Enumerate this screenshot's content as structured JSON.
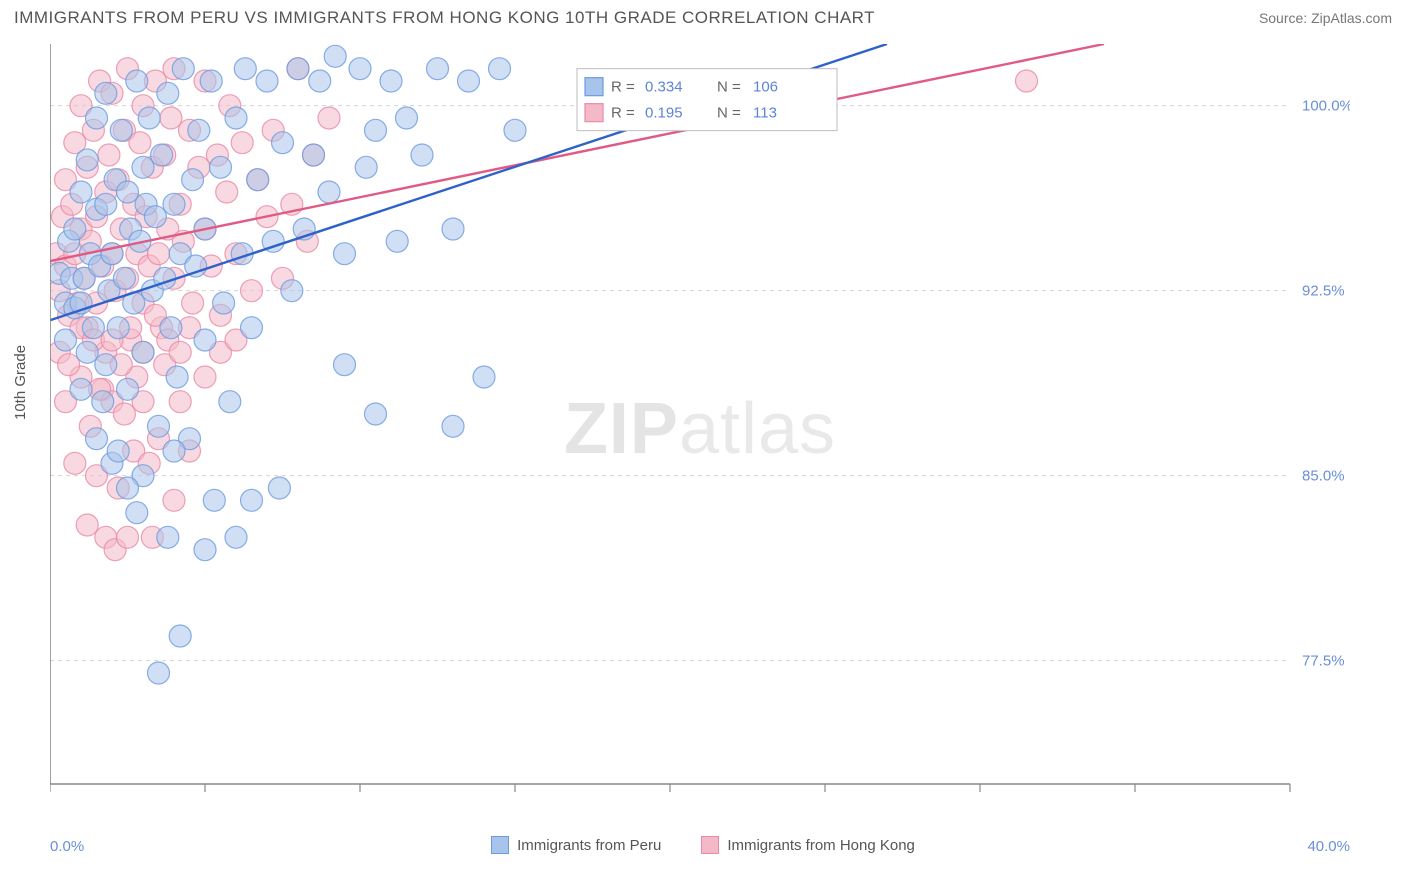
{
  "header": {
    "title": "IMMIGRANTS FROM PERU VS IMMIGRANTS FROM HONG KONG 10TH GRADE CORRELATION CHART",
    "source": "Source: ZipAtlas.com"
  },
  "axes": {
    "ylabel": "10th Grade",
    "x_min_label": "0.0%",
    "x_max_label": "40.0%",
    "xlim": [
      0,
      40
    ],
    "ylim": [
      72.5,
      102.5
    ],
    "y_ticks": [
      77.5,
      85.0,
      92.5,
      100.0
    ],
    "y_tick_labels": [
      "77.5%",
      "85.0%",
      "92.5%",
      "100.0%"
    ],
    "x_ticks": [
      0,
      5,
      10,
      15,
      20,
      25,
      30,
      35,
      40
    ],
    "grid_color": "#d4d4d4",
    "axis_color": "#888888",
    "tick_label_color": "#6a8fd8",
    "tick_label_fontsize": 15
  },
  "legend_box": {
    "border_color": "#bdbdbd",
    "bg": "#ffffff",
    "rows": [
      {
        "r_label": "R =",
        "r_value": "0.334",
        "n_label": "N =",
        "n_value": "106",
        "swatch_fill": "#a9c4ea",
        "swatch_stroke": "#6d9be0"
      },
      {
        "r_label": "R =",
        "r_value": "0.195",
        "n_label": "N =",
        "n_value": "113",
        "swatch_fill": "#f4b9c9",
        "swatch_stroke": "#e88aa6"
      }
    ],
    "value_color": "#5d84d6",
    "label_color": "#666666"
  },
  "bottom_legend": {
    "items": [
      {
        "label": "Immigrants from Peru",
        "fill": "#a9c4ea",
        "stroke": "#6d9be0"
      },
      {
        "label": "Immigrants from Hong Kong",
        "fill": "#f4b9c9",
        "stroke": "#e88aa6"
      }
    ]
  },
  "watermark": {
    "bold": "ZIP",
    "light": "atlas"
  },
  "series": {
    "peru": {
      "fill": "#a9c4ea",
      "stroke": "#6d9be0",
      "opacity": 0.55,
      "marker_r": 11,
      "line_stroke": "#2f62c9",
      "line_width": 2.4,
      "trend": {
        "x1": 0,
        "y1": 91.3,
        "x2": 27,
        "y2": 102.5
      },
      "points": [
        [
          0.3,
          93.2
        ],
        [
          0.5,
          92.0
        ],
        [
          0.6,
          94.5
        ],
        [
          0.7,
          93.0
        ],
        [
          0.8,
          91.8
        ],
        [
          0.8,
          95.0
        ],
        [
          1.0,
          92.0
        ],
        [
          1.0,
          96.5
        ],
        [
          1.1,
          93.0
        ],
        [
          1.2,
          90.0
        ],
        [
          1.2,
          97.8
        ],
        [
          1.3,
          94.0
        ],
        [
          1.4,
          91.0
        ],
        [
          1.5,
          95.8
        ],
        [
          1.5,
          99.5
        ],
        [
          1.6,
          93.5
        ],
        [
          1.7,
          88.0
        ],
        [
          1.8,
          96.0
        ],
        [
          1.8,
          100.5
        ],
        [
          1.9,
          92.5
        ],
        [
          2.0,
          94.0
        ],
        [
          2.0,
          85.5
        ],
        [
          2.1,
          97.0
        ],
        [
          2.2,
          91.0
        ],
        [
          2.3,
          99.0
        ],
        [
          2.4,
          93.0
        ],
        [
          2.5,
          96.5
        ],
        [
          2.5,
          88.5
        ],
        [
          2.6,
          95.0
        ],
        [
          2.7,
          92.0
        ],
        [
          2.8,
          101.0
        ],
        [
          2.8,
          83.5
        ],
        [
          2.9,
          94.5
        ],
        [
          3.0,
          97.5
        ],
        [
          3.0,
          90.0
        ],
        [
          3.1,
          96.0
        ],
        [
          3.2,
          99.5
        ],
        [
          3.3,
          92.5
        ],
        [
          3.4,
          95.5
        ],
        [
          3.5,
          87.0
        ],
        [
          3.6,
          98.0
        ],
        [
          3.7,
          93.0
        ],
        [
          3.8,
          100.5
        ],
        [
          3.9,
          91.0
        ],
        [
          4.0,
          96.0
        ],
        [
          4.1,
          89.0
        ],
        [
          4.2,
          94.0
        ],
        [
          4.3,
          101.5
        ],
        [
          4.5,
          86.5
        ],
        [
          4.6,
          97.0
        ],
        [
          4.7,
          93.5
        ],
        [
          4.8,
          99.0
        ],
        [
          5.0,
          95.0
        ],
        [
          5.0,
          90.5
        ],
        [
          5.2,
          101.0
        ],
        [
          5.3,
          84.0
        ],
        [
          5.5,
          97.5
        ],
        [
          5.6,
          92.0
        ],
        [
          5.8,
          88.0
        ],
        [
          6.0,
          99.5
        ],
        [
          6.2,
          94.0
        ],
        [
          6.3,
          101.5
        ],
        [
          6.5,
          91.0
        ],
        [
          6.7,
          97.0
        ],
        [
          7.0,
          101.0
        ],
        [
          7.2,
          94.5
        ],
        [
          7.4,
          84.5
        ],
        [
          7.5,
          98.5
        ],
        [
          7.8,
          92.5
        ],
        [
          8.0,
          101.5
        ],
        [
          8.2,
          95.0
        ],
        [
          8.5,
          98.0
        ],
        [
          8.7,
          101.0
        ],
        [
          9.0,
          96.5
        ],
        [
          9.2,
          102.0
        ],
        [
          9.5,
          94.0
        ],
        [
          9.5,
          89.5
        ],
        [
          10.0,
          101.5
        ],
        [
          10.2,
          97.5
        ],
        [
          10.5,
          99.0
        ],
        [
          10.5,
          87.5
        ],
        [
          11.0,
          101.0
        ],
        [
          11.2,
          94.5
        ],
        [
          11.5,
          99.5
        ],
        [
          12.0,
          98.0
        ],
        [
          12.5,
          101.5
        ],
        [
          13.0,
          95.0
        ],
        [
          13.0,
          87.0
        ],
        [
          13.5,
          101.0
        ],
        [
          14.0,
          89.0
        ],
        [
          14.5,
          101.5
        ],
        [
          15.0,
          99.0
        ],
        [
          3.5,
          77.0
        ],
        [
          4.2,
          78.5
        ],
        [
          5.0,
          82.0
        ],
        [
          3.0,
          85.0
        ],
        [
          3.8,
          82.5
        ],
        [
          6.0,
          82.5
        ],
        [
          6.5,
          84.0
        ],
        [
          4.0,
          86.0
        ],
        [
          2.2,
          86.0
        ],
        [
          2.5,
          84.5
        ],
        [
          1.5,
          86.5
        ],
        [
          1.0,
          88.5
        ],
        [
          1.8,
          89.5
        ],
        [
          0.5,
          90.5
        ]
      ]
    },
    "hk": {
      "fill": "#f4b9c9",
      "stroke": "#e88aa6",
      "opacity": 0.55,
      "marker_r": 11,
      "line_stroke": "#e15a84",
      "line_width": 2.4,
      "trend": {
        "x1": 0,
        "y1": 93.7,
        "x2": 34,
        "y2": 102.5
      },
      "points": [
        [
          0.2,
          94.0
        ],
        [
          0.3,
          92.5
        ],
        [
          0.4,
          95.5
        ],
        [
          0.5,
          93.5
        ],
        [
          0.5,
          97.0
        ],
        [
          0.6,
          91.5
        ],
        [
          0.7,
          96.0
        ],
        [
          0.8,
          94.0
        ],
        [
          0.8,
          98.5
        ],
        [
          0.9,
          92.0
        ],
        [
          1.0,
          95.0
        ],
        [
          1.0,
          100.0
        ],
        [
          1.1,
          93.0
        ],
        [
          1.2,
          97.5
        ],
        [
          1.2,
          91.0
        ],
        [
          1.3,
          94.5
        ],
        [
          1.4,
          99.0
        ],
        [
          1.5,
          95.5
        ],
        [
          1.5,
          92.0
        ],
        [
          1.6,
          101.0
        ],
        [
          1.7,
          93.5
        ],
        [
          1.8,
          96.5
        ],
        [
          1.8,
          90.0
        ],
        [
          1.9,
          98.0
        ],
        [
          2.0,
          94.0
        ],
        [
          2.0,
          100.5
        ],
        [
          2.1,
          92.5
        ],
        [
          2.2,
          97.0
        ],
        [
          2.3,
          95.0
        ],
        [
          2.4,
          99.0
        ],
        [
          2.5,
          93.0
        ],
        [
          2.5,
          101.5
        ],
        [
          2.6,
          90.5
        ],
        [
          2.7,
          96.0
        ],
        [
          2.8,
          94.0
        ],
        [
          2.9,
          98.5
        ],
        [
          3.0,
          92.0
        ],
        [
          3.0,
          100.0
        ],
        [
          3.1,
          95.5
        ],
        [
          3.2,
          93.5
        ],
        [
          3.3,
          97.5
        ],
        [
          3.4,
          101.0
        ],
        [
          3.5,
          94.0
        ],
        [
          3.6,
          91.0
        ],
        [
          3.7,
          98.0
        ],
        [
          3.8,
          95.0
        ],
        [
          3.9,
          99.5
        ],
        [
          4.0,
          93.0
        ],
        [
          4.0,
          101.5
        ],
        [
          4.2,
          96.0
        ],
        [
          4.3,
          94.5
        ],
        [
          4.5,
          99.0
        ],
        [
          4.6,
          92.0
        ],
        [
          4.8,
          97.5
        ],
        [
          5.0,
          95.0
        ],
        [
          5.0,
          101.0
        ],
        [
          5.2,
          93.5
        ],
        [
          5.4,
          98.0
        ],
        [
          5.5,
          90.0
        ],
        [
          5.7,
          96.5
        ],
        [
          5.8,
          100.0
        ],
        [
          6.0,
          94.0
        ],
        [
          6.2,
          98.5
        ],
        [
          6.5,
          92.5
        ],
        [
          6.7,
          97.0
        ],
        [
          7.0,
          95.5
        ],
        [
          7.2,
          99.0
        ],
        [
          7.5,
          93.0
        ],
        [
          7.8,
          96.0
        ],
        [
          8.0,
          101.5
        ],
        [
          8.3,
          94.5
        ],
        [
          8.5,
          98.0
        ],
        [
          9.0,
          99.5
        ],
        [
          31.5,
          101.0
        ],
        [
          0.5,
          88.0
        ],
        [
          0.8,
          85.5
        ],
        [
          1.0,
          89.0
        ],
        [
          1.2,
          83.0
        ],
        [
          1.3,
          87.0
        ],
        [
          1.5,
          85.0
        ],
        [
          1.7,
          88.5
        ],
        [
          1.8,
          82.5
        ],
        [
          2.0,
          88.0
        ],
        [
          2.1,
          82.0
        ],
        [
          2.2,
          84.5
        ],
        [
          2.4,
          87.5
        ],
        [
          2.5,
          82.5
        ],
        [
          2.7,
          86.0
        ],
        [
          2.8,
          89.0
        ],
        [
          3.0,
          88.0
        ],
        [
          3.2,
          85.5
        ],
        [
          3.3,
          82.5
        ],
        [
          3.5,
          86.5
        ],
        [
          3.7,
          89.5
        ],
        [
          4.0,
          84.0
        ],
        [
          4.2,
          88.0
        ],
        [
          4.5,
          86.0
        ],
        [
          0.3,
          90.0
        ],
        [
          0.6,
          89.5
        ],
        [
          1.0,
          91.0
        ],
        [
          1.4,
          90.5
        ],
        [
          1.6,
          88.5
        ],
        [
          2.0,
          90.5
        ],
        [
          2.3,
          89.5
        ],
        [
          2.6,
          91.0
        ],
        [
          3.0,
          90.0
        ],
        [
          3.4,
          91.5
        ],
        [
          3.8,
          90.5
        ],
        [
          4.2,
          90.0
        ],
        [
          4.5,
          91.0
        ],
        [
          5.0,
          89.0
        ],
        [
          5.5,
          91.5
        ],
        [
          6.0,
          90.5
        ]
      ]
    }
  }
}
